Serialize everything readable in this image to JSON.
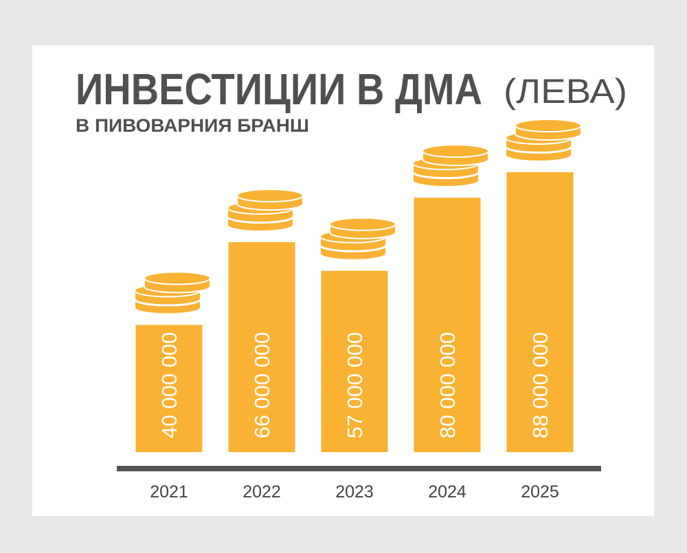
{
  "chart_data": {
    "type": "bar",
    "title": "ИНВЕСТИЦИИ В ДМА",
    "unit_label": "(ЛЕВА)",
    "subtitle": "В ПИВОВАРНИЯ БРАНШ",
    "categories": [
      "2021",
      "2022",
      "2023",
      "2024",
      "2025"
    ],
    "values": [
      40000000,
      66000000,
      57000000,
      80000000,
      88000000
    ],
    "value_labels": [
      "40 000 000",
      "66 000 000",
      "57 000 000",
      "80 000 000",
      "88 000 000"
    ],
    "color": "#f9b233"
  }
}
